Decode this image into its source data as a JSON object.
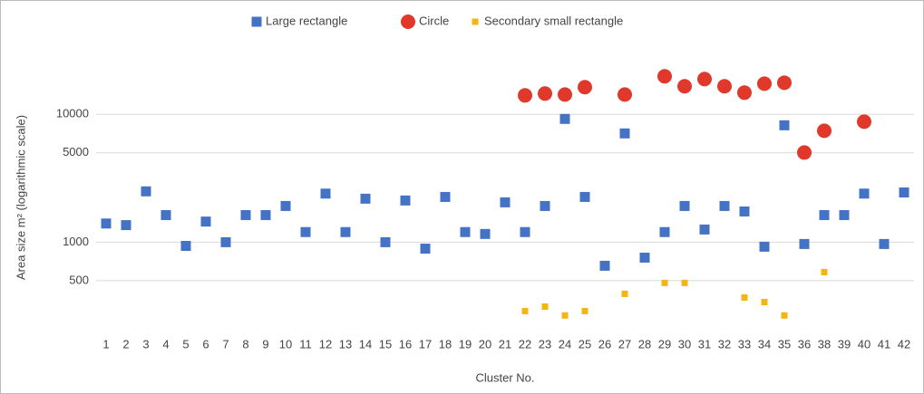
{
  "chart_data": {
    "type": "scatter",
    "x_label": "Cluster No.",
    "y_label": "Area size m² (logarithmic scale)",
    "log_scale": true,
    "grid": true,
    "legend": "top",
    "ylim": [
      200,
      30000
    ],
    "yticks": [
      500,
      1000,
      5000,
      10000
    ],
    "categories": [
      "1",
      "2",
      "3",
      "4",
      "5",
      "6",
      "7",
      "8",
      "9",
      "10",
      "11",
      "12",
      "13",
      "14",
      "15",
      "16",
      "17",
      "18",
      "19",
      "20",
      "21",
      "22",
      "23",
      "24",
      "25",
      "26",
      "27",
      "28",
      "29",
      "30",
      "31",
      "32",
      "33",
      "34",
      "35",
      "36",
      "38",
      "39",
      "40",
      "41",
      "42"
    ],
    "series": [
      {
        "name": "Large rectangle",
        "color": "#4472c4",
        "marker": "square",
        "values": [
          1400,
          1360,
          2500,
          1630,
          935,
          1450,
          1000,
          1630,
          1630,
          1920,
          1200,
          2400,
          1200,
          2190,
          1000,
          2120,
          890,
          2260,
          1200,
          1160,
          2050,
          1200,
          1920,
          9220,
          2260,
          654,
          7100,
          757,
          1200,
          1920,
          1257,
          1920,
          1740,
          922,
          8220,
          968,
          1630,
          1630,
          2400,
          968,
          2450
        ]
      },
      {
        "name": "Circle",
        "color": "#e0392b",
        "marker": "circle",
        "values": [
          null,
          null,
          null,
          null,
          null,
          null,
          null,
          null,
          null,
          null,
          null,
          null,
          null,
          null,
          null,
          null,
          null,
          null,
          null,
          null,
          null,
          14090,
          14560,
          14300,
          16330,
          null,
          14300,
          null,
          19860,
          16600,
          18900,
          16600,
          14800,
          17400,
          17700,
          5030,
          7450,
          null,
          8770,
          null,
          null
        ]
      },
      {
        "name": "Secondary small rectangle",
        "color": "#f4b414",
        "marker": "small-square",
        "values": [
          null,
          null,
          null,
          null,
          null,
          null,
          null,
          null,
          null,
          null,
          null,
          null,
          null,
          null,
          null,
          null,
          null,
          null,
          null,
          null,
          null,
          289,
          313,
          267,
          289,
          null,
          394,
          null,
          480,
          480,
          null,
          null,
          369,
          340,
          267,
          null,
          583,
          null,
          null,
          null,
          null
        ]
      }
    ]
  }
}
